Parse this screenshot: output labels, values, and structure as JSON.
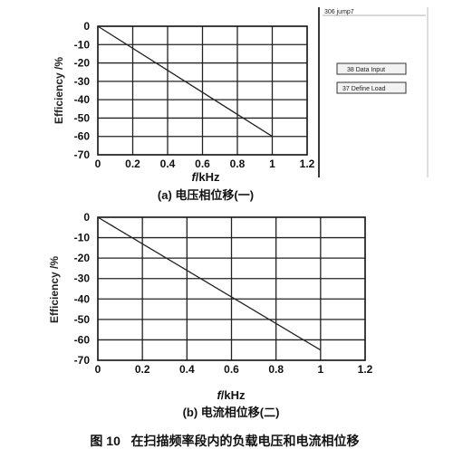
{
  "chart_data": [
    {
      "type": "line",
      "caption": "(a) 电压相位移(一)",
      "xlabel_italic": "f",
      "xlabel_unit": "/kHz",
      "ylabel": "Efficiency /%",
      "xlim": [
        0,
        1.2
      ],
      "ylim": [
        -70,
        0
      ],
      "x_ticks": [
        "0",
        "0.2",
        "0.4",
        "0.6",
        "0.8",
        "1",
        "1.2"
      ],
      "y_ticks": [
        "0",
        "-10",
        "-20",
        "-30",
        "-40",
        "-50",
        "-60",
        "-70"
      ],
      "grid": true,
      "series": [
        {
          "x": [
            0,
            1
          ],
          "y": [
            0,
            -60
          ]
        }
      ]
    },
    {
      "type": "line",
      "caption": "(b) 电流相位移(二)",
      "xlabel_italic": "f",
      "xlabel_unit": "/kHz",
      "ylabel": "Efficiency /%",
      "xlim": [
        0,
        1.2
      ],
      "ylim": [
        -70,
        0
      ],
      "x_ticks": [
        "0",
        "0.2",
        "0.4",
        "0.6",
        "0.8",
        "1",
        "1.2"
      ],
      "y_ticks": [
        "0",
        "-10",
        "-20",
        "-30",
        "-40",
        "-50",
        "-60",
        "-70"
      ],
      "grid": true,
      "series": [
        {
          "x": [
            0,
            1
          ],
          "y": [
            0,
            -65
          ]
        }
      ]
    }
  ],
  "figure_caption": "图 10   在扫描频率段内的负载电压和电流相位移",
  "software_panel": {
    "top_text": "306 jump7",
    "button_1": "38 Data Input",
    "button_2": "37 Define Load"
  }
}
